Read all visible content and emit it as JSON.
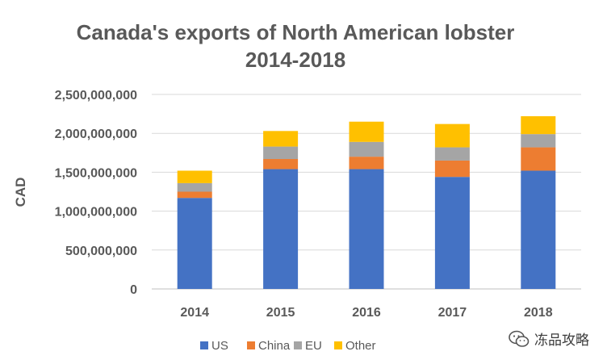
{
  "chart_data": {
    "type": "bar",
    "stacked": true,
    "title": [
      "Canada's exports of North American lobster",
      "2014-2018"
    ],
    "xlabel": "",
    "ylabel": "CAD",
    "categories": [
      "2014",
      "2015",
      "2016",
      "2017",
      "2018"
    ],
    "ylim": [
      0,
      2500000000
    ],
    "yticks": [
      0,
      500000000,
      1000000000,
      1500000000,
      2000000000,
      2500000000
    ],
    "ytick_labels": [
      "0",
      "500,000,000",
      "1,000,000,000",
      "1,500,000,000",
      "2,000,000,000",
      "2,500,000,000"
    ],
    "grid": true,
    "legend_position": "bottom",
    "series": [
      {
        "name": "US",
        "color": "#4472C4",
        "values": [
          1170000000,
          1540000000,
          1540000000,
          1440000000,
          1520000000
        ]
      },
      {
        "name": "China",
        "color": "#ED7D31",
        "values": [
          80000000,
          130000000,
          160000000,
          210000000,
          300000000
        ]
      },
      {
        "name": "EU",
        "color": "#A5A5A5",
        "values": [
          110000000,
          160000000,
          190000000,
          170000000,
          170000000
        ]
      },
      {
        "name": "Other",
        "color": "#FFC000",
        "values": [
          160000000,
          200000000,
          260000000,
          300000000,
          230000000
        ]
      }
    ]
  },
  "watermark": {
    "text": "冻品攻略",
    "icon": "wechat-icon"
  }
}
